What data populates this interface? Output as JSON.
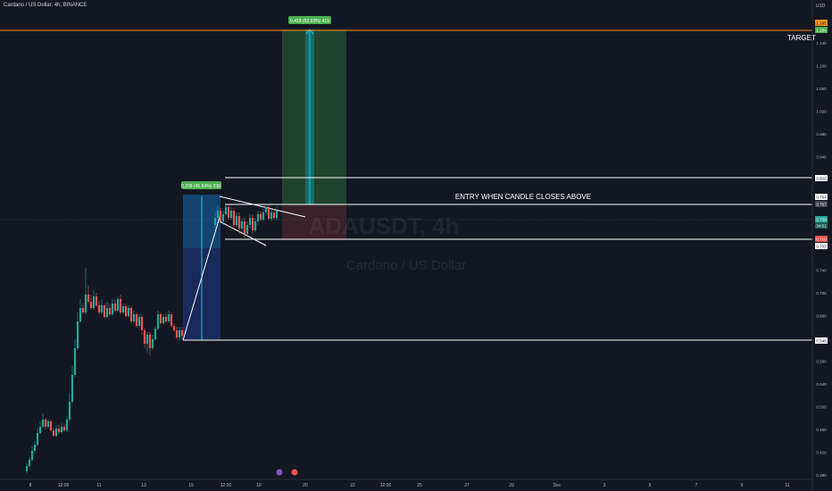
{
  "header": {
    "symbol": "Cardano / US Dollar, 4h, BINANCE"
  },
  "price_axis": {
    "currency": "USD",
    "ticks": [
      "1.140",
      "1.100",
      "1.060",
      "1.020",
      "0.980",
      "0.940",
      "0.900",
      "0.860",
      "0.820",
      "0.780",
      "0.740",
      "0.700",
      "0.660",
      "0.620",
      "0.580",
      "0.540",
      "0.500",
      "0.460",
      "0.420",
      "0.380"
    ]
  },
  "price_labels": {
    "target_top": "1.185",
    "target": "1.184",
    "level_820": "0.820",
    "entry_764": "0.764",
    "entry_767": "0.767",
    "current": "0.739",
    "countdown": "34:51",
    "red_710": "0.710",
    "level_703": "0.703",
    "base_546": "0.546"
  },
  "time_axis": {
    "ticks": [
      "8",
      "12:00",
      "11",
      "13",
      "15",
      "12:00",
      "18",
      "20",
      "22",
      "12:00",
      "25",
      "27",
      "29",
      "Dec",
      "3",
      "5",
      "7",
      "9",
      "11"
    ]
  },
  "annotations": {
    "target": "TARGET",
    "entry": "ENTRY WHEN CANDLE CLOSES ABOVE",
    "measure_left": "0.238 (45.59%) 238",
    "measure_right": "0.419 (53.93%) 419",
    "watermark_big": "ADAUSDT, 4h",
    "watermark_sub": "Cardano / US Dollar"
  },
  "colors": {
    "background": "#131722",
    "up": "#26a69a",
    "down": "#ef5350",
    "target_line": "#f7931a",
    "level_line": "#ffffff",
    "measure_blue": "#2962ff",
    "measure_green": "#4caf50"
  }
}
